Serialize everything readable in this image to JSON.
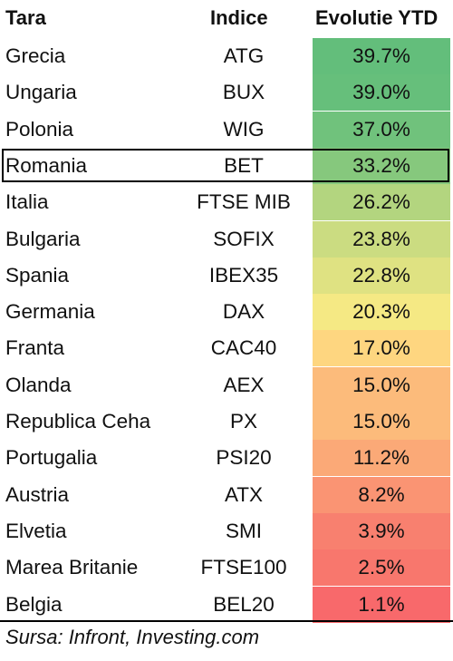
{
  "headers": {
    "country": "Tara",
    "index": "Indice",
    "performance": "Evolutie YTD"
  },
  "rows": [
    {
      "country": "Grecia",
      "index": "ATG",
      "value": "39.7%",
      "color": "#63be7b"
    },
    {
      "country": "Ungaria",
      "index": "BUX",
      "value": "39.0%",
      "color": "#66bf7b"
    },
    {
      "country": "Polonia",
      "index": "WIG",
      "value": "37.0%",
      "color": "#70c27c"
    },
    {
      "country": "Romania",
      "index": "BET",
      "value": "33.2%",
      "color": "#86c87d"
    },
    {
      "country": "Italia",
      "index": "FTSE MIB",
      "value": "26.2%",
      "color": "#b3d57f"
    },
    {
      "country": "Bulgaria",
      "index": "SOFIX",
      "value": "23.8%",
      "color": "#cbdc81"
    },
    {
      "country": "Spania",
      "index": "IBEX35",
      "value": "22.8%",
      "color": "#dfe282"
    },
    {
      "country": "Germania",
      "index": "DAX",
      "value": "20.3%",
      "color": "#f5e984"
    },
    {
      "country": "Franta",
      "index": "CAC40",
      "value": "17.0%",
      "color": "#fed680"
    },
    {
      "country": "Olanda",
      "index": "AEX",
      "value": "15.0%",
      "color": "#fcbb7b"
    },
    {
      "country": "Republica Ceha",
      "index": "PX",
      "value": "15.0%",
      "color": "#fcbb7b"
    },
    {
      "country": "Portugalia",
      "index": "PSI20",
      "value": "11.2%",
      "color": "#fba977"
    },
    {
      "country": "Austria",
      "index": "ATX",
      "value": "8.2%",
      "color": "#fa9473"
    },
    {
      "country": "Elvetia",
      "index": "SMI",
      "value": "3.9%",
      "color": "#f8806f"
    },
    {
      "country": "Marea Britanie",
      "index": "FTSE100",
      "value": "2.5%",
      "color": "#f8776d"
    },
    {
      "country": "Belgia",
      "index": "BEL20",
      "value": "1.1%",
      "color": "#f8696b"
    }
  ],
  "highlighted_country": "Romania",
  "source": "Sursa: Infront, Investing.com"
}
